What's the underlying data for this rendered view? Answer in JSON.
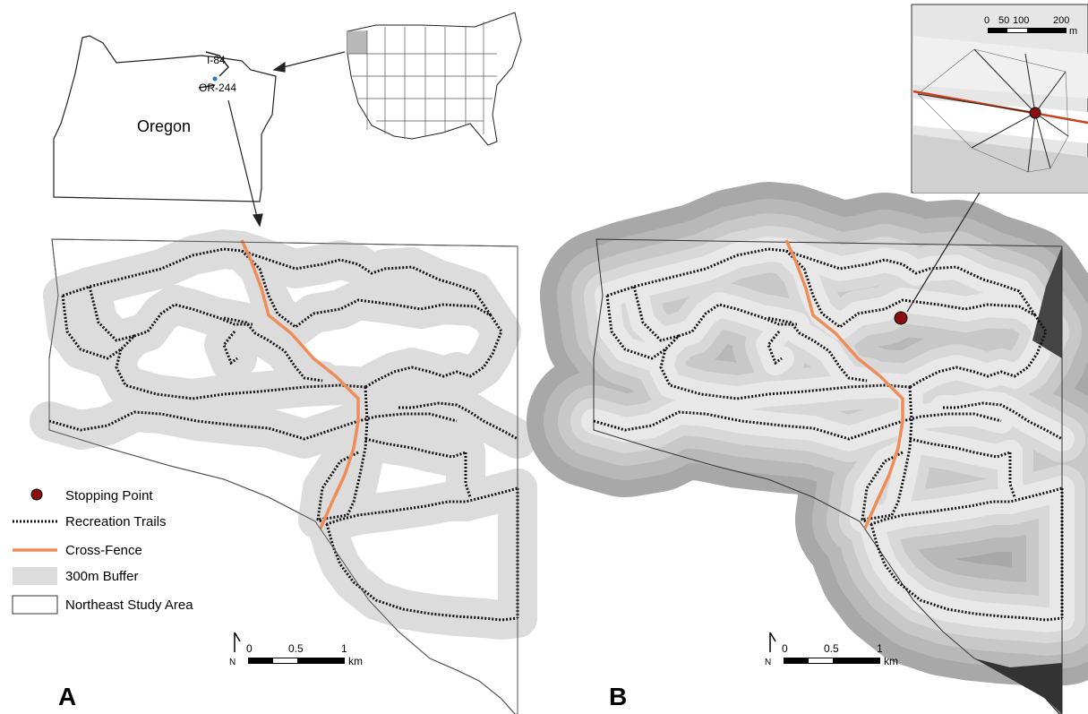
{
  "inset_oregon": {
    "state_label": "Oregon",
    "highway_label_1": "I-84",
    "highway_label_2": "OR-244"
  },
  "legend": {
    "stopping_point": "Stopping Point",
    "recreation_trails": "Recreation Trails",
    "cross_fence": "Cross-Fence",
    "buffer": "300m Buffer",
    "study_area": "Northeast Study Area"
  },
  "scalebar_km": {
    "tick_0": "0",
    "tick_half": "0.5",
    "tick_1": "1",
    "unit": "km",
    "north_label": "N"
  },
  "scalebar_m": {
    "tick_0": "0",
    "tick_50": "50",
    "tick_100": "100",
    "tick_200": "200",
    "unit": "m"
  },
  "panels": {
    "a_label": "A",
    "b_label": "B"
  },
  "colors": {
    "trail": "#111111",
    "fence": "#ee8c5a",
    "buffer": "#dcdcdc",
    "stop_point": "#8b0d0d",
    "fence_inset": "#c8421e"
  }
}
